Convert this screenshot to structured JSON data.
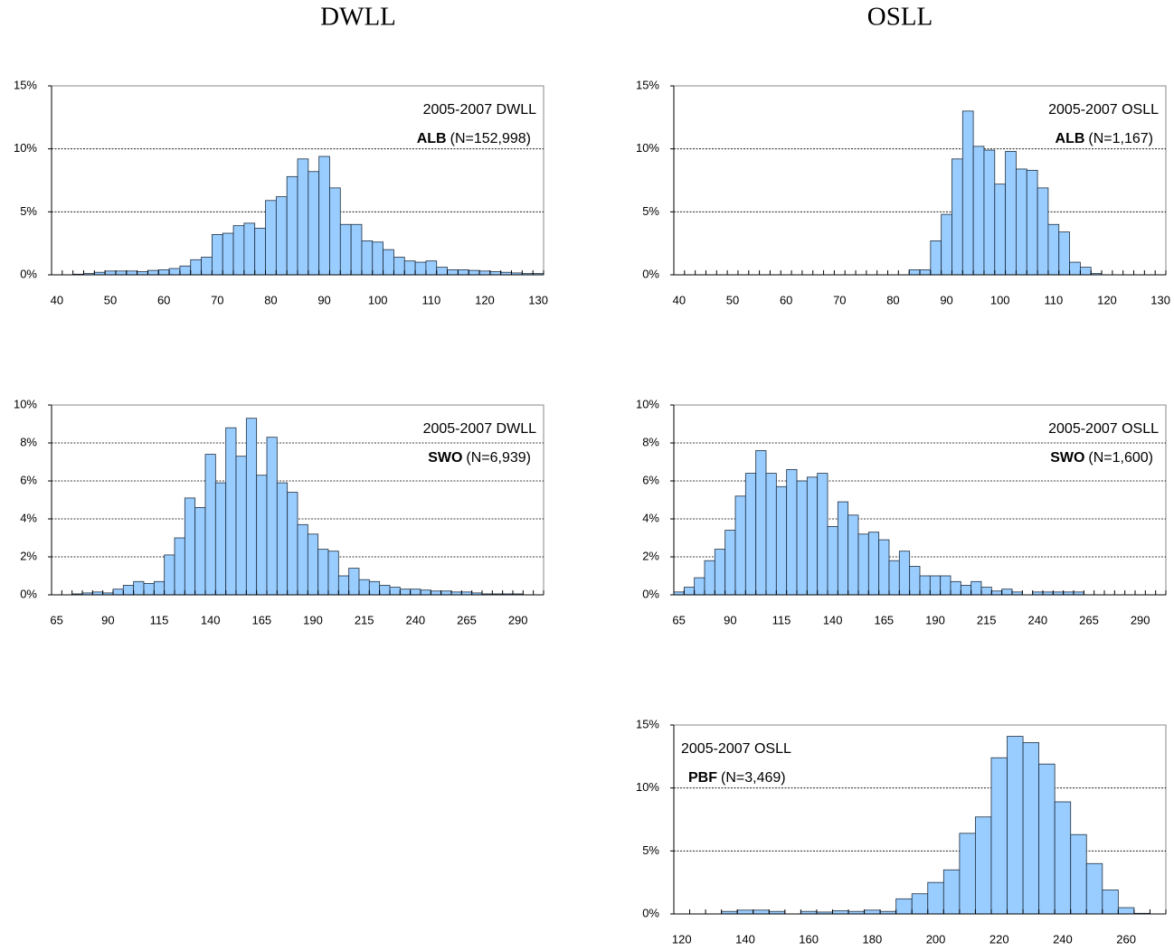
{
  "column_titles": [
    "DWLL",
    "OSLL"
  ],
  "chart_data": [
    {
      "type": "histogram",
      "annotation": "2005-2007 DWLL",
      "species": "ALB",
      "n_label": "(N=152,998)",
      "annotation_corner": "top-right",
      "bins": [
        39,
        41,
        43,
        45,
        47,
        49,
        51,
        53,
        55,
        57,
        59,
        61,
        63,
        65,
        67,
        69,
        71,
        73,
        75,
        77,
        79,
        81,
        83,
        85,
        87,
        89,
        91,
        93,
        95,
        97,
        99,
        101,
        103,
        105,
        107,
        109,
        111,
        113,
        115,
        117,
        119,
        121,
        123,
        125,
        127,
        129,
        131
      ],
      "values": [
        0,
        0,
        0.05,
        0.1,
        0.2,
        0.3,
        0.3,
        0.3,
        0.25,
        0.35,
        0.4,
        0.5,
        0.7,
        1.2,
        1.4,
        3.2,
        3.3,
        3.9,
        4.1,
        3.7,
        5.9,
        6.2,
        7.8,
        9.2,
        8.2,
        9.4,
        6.9,
        4.0,
        4.0,
        2.7,
        2.6,
        2.0,
        1.4,
        1.1,
        1.0,
        1.1,
        0.6,
        0.4,
        0.4,
        0.35,
        0.3,
        0.25,
        0.2,
        0.15,
        0.1,
        0.1
      ],
      "color": "#99ccff",
      "xlim": [
        39,
        131
      ],
      "xticks": [
        40,
        50,
        60,
        70,
        80,
        90,
        100,
        110,
        120,
        130
      ],
      "ylim": [
        0,
        15
      ],
      "yticks": [
        {
          "value": 0,
          "label": "0%"
        },
        {
          "value": 5,
          "label": "5%"
        },
        {
          "value": 10,
          "label": "10%"
        },
        {
          "value": 15,
          "label": "15%"
        }
      ],
      "grid": true
    },
    {
      "type": "histogram",
      "annotation": "2005-2007 OSLL",
      "species": "ALB",
      "n_label": "(N=1,167)",
      "annotation_corner": "top-right",
      "bins": [
        39,
        41,
        43,
        45,
        47,
        49,
        51,
        53,
        55,
        57,
        59,
        61,
        63,
        65,
        67,
        69,
        71,
        73,
        75,
        77,
        79,
        81,
        83,
        85,
        87,
        89,
        91,
        93,
        95,
        97,
        99,
        101,
        103,
        105,
        107,
        109,
        111,
        113,
        115,
        117,
        119,
        121,
        123,
        125,
        127,
        129,
        131
      ],
      "values": [
        0,
        0,
        0,
        0,
        0,
        0,
        0,
        0,
        0,
        0,
        0,
        0,
        0,
        0,
        0,
        0,
        0,
        0,
        0,
        0,
        0,
        0,
        0.4,
        0.4,
        2.7,
        4.8,
        9.2,
        13.0,
        10.2,
        9.9,
        7.2,
        9.8,
        8.4,
        8.3,
        6.9,
        4.0,
        3.4,
        1.0,
        0.6,
        0.1,
        0,
        0,
        0,
        0,
        0,
        0
      ],
      "color": "#99ccff",
      "xlim": [
        39,
        131
      ],
      "xticks": [
        40,
        50,
        60,
        70,
        80,
        90,
        100,
        110,
        120,
        130
      ],
      "ylim": [
        0,
        15
      ],
      "yticks": [
        {
          "value": 0,
          "label": "0%"
        },
        {
          "value": 5,
          "label": "5%"
        },
        {
          "value": 10,
          "label": "10%"
        },
        {
          "value": 15,
          "label": "15%"
        }
      ],
      "grid": true
    },
    {
      "type": "histogram",
      "annotation": "2005-2007 DWLL",
      "species": "SWO",
      "n_label": "(N=6,939)",
      "annotation_corner": "top-right",
      "bins": [
        62.5,
        67.5,
        72.5,
        77.5,
        82.5,
        87.5,
        92.5,
        97.5,
        102.5,
        107.5,
        112.5,
        117.5,
        122.5,
        127.5,
        132.5,
        137.5,
        142.5,
        147.5,
        152.5,
        157.5,
        162.5,
        167.5,
        172.5,
        177.5,
        182.5,
        187.5,
        192.5,
        197.5,
        202.5,
        207.5,
        212.5,
        217.5,
        222.5,
        227.5,
        232.5,
        237.5,
        242.5,
        247.5,
        252.5,
        257.5,
        262.5,
        267.5,
        272.5,
        277.5,
        282.5,
        287.5,
        292.5,
        297.5,
        302.5
      ],
      "values": [
        0,
        0,
        0.05,
        0.1,
        0.15,
        0.1,
        0.3,
        0.5,
        0.7,
        0.6,
        0.7,
        2.1,
        3.0,
        5.1,
        4.6,
        7.4,
        5.9,
        8.8,
        7.3,
        9.3,
        6.3,
        8.3,
        5.9,
        5.4,
        3.7,
        3.2,
        2.4,
        2.3,
        1.0,
        1.4,
        0.8,
        0.7,
        0.5,
        0.4,
        0.3,
        0.3,
        0.25,
        0.2,
        0.2,
        0.15,
        0.15,
        0.1,
        0.05,
        0.05,
        0.05,
        0.05,
        0,
        0
      ],
      "color": "#99ccff",
      "xlim": [
        62.5,
        302.5
      ],
      "xticks": [
        65,
        90,
        115,
        140,
        165,
        190,
        215,
        240,
        265,
        290
      ],
      "ylim": [
        0,
        10
      ],
      "yticks": [
        {
          "value": 0,
          "label": "0%"
        },
        {
          "value": 2,
          "label": "2%"
        },
        {
          "value": 4,
          "label": "4%"
        },
        {
          "value": 6,
          "label": "6%"
        },
        {
          "value": 8,
          "label": "8%"
        },
        {
          "value": 10,
          "label": "10%"
        }
      ],
      "grid": true
    },
    {
      "type": "histogram",
      "annotation": "2005-2007 OSLL",
      "species": "SWO",
      "n_label": "(N=1,600)",
      "annotation_corner": "top-right",
      "bins": [
        62.5,
        67.5,
        72.5,
        77.5,
        82.5,
        87.5,
        92.5,
        97.5,
        102.5,
        107.5,
        112.5,
        117.5,
        122.5,
        127.5,
        132.5,
        137.5,
        142.5,
        147.5,
        152.5,
        157.5,
        162.5,
        167.5,
        172.5,
        177.5,
        182.5,
        187.5,
        192.5,
        197.5,
        202.5,
        207.5,
        212.5,
        217.5,
        222.5,
        227.5,
        232.5,
        237.5,
        242.5,
        247.5,
        252.5,
        257.5,
        262.5,
        267.5,
        272.5,
        277.5,
        282.5,
        287.5,
        292.5,
        297.5,
        302.5
      ],
      "values": [
        0.15,
        0.4,
        0.9,
        1.8,
        2.4,
        3.4,
        5.2,
        6.4,
        7.6,
        6.4,
        5.7,
        6.6,
        6.0,
        6.2,
        6.4,
        3.6,
        4.9,
        4.2,
        3.2,
        3.3,
        2.9,
        1.8,
        2.3,
        1.5,
        1.0,
        1.0,
        1.0,
        0.7,
        0.5,
        0.7,
        0.4,
        0.2,
        0.3,
        0.15,
        0,
        0.15,
        0.15,
        0.15,
        0.15,
        0.15,
        0,
        0,
        0,
        0,
        0,
        0,
        0,
        0
      ],
      "color": "#99ccff",
      "xlim": [
        62.5,
        302.5
      ],
      "xticks": [
        65,
        90,
        115,
        140,
        165,
        190,
        215,
        240,
        265,
        290
      ],
      "ylim": [
        0,
        10
      ],
      "yticks": [
        {
          "value": 0,
          "label": "0%"
        },
        {
          "value": 2,
          "label": "2%"
        },
        {
          "value": 4,
          "label": "4%"
        },
        {
          "value": 6,
          "label": "6%"
        },
        {
          "value": 8,
          "label": "8%"
        },
        {
          "value": 10,
          "label": "10%"
        }
      ],
      "grid": true
    },
    {
      "type": "histogram",
      "annotation": "2005-2007 OSLL",
      "species": "PBF",
      "n_label": "(N=3,469)",
      "annotation_corner": "top-left",
      "bins": [
        117.5,
        122.5,
        127.5,
        132.5,
        137.5,
        142.5,
        147.5,
        152.5,
        157.5,
        162.5,
        167.5,
        172.5,
        177.5,
        182.5,
        187.5,
        192.5,
        197.5,
        202.5,
        207.5,
        212.5,
        217.5,
        222.5,
        227.5,
        232.5,
        237.5,
        242.5,
        247.5,
        252.5,
        257.5,
        262.5,
        267.5,
        272.5
      ],
      "values": [
        0,
        0,
        0,
        0.2,
        0.3,
        0.3,
        0.2,
        0,
        0.2,
        0.15,
        0.25,
        0.2,
        0.3,
        0.2,
        1.2,
        1.6,
        2.5,
        3.5,
        6.4,
        7.7,
        12.4,
        14.1,
        13.6,
        11.9,
        8.9,
        6.3,
        4.0,
        1.9,
        0.5,
        0.05,
        0
      ],
      "color": "#99ccff",
      "xlim": [
        117.5,
        272.5
      ],
      "xticks": [
        120,
        140,
        160,
        180,
        200,
        220,
        240,
        260
      ],
      "ylim": [
        0,
        15
      ],
      "yticks": [
        {
          "value": 0,
          "label": "0%"
        },
        {
          "value": 5,
          "label": "5%"
        },
        {
          "value": 10,
          "label": "10%"
        },
        {
          "value": 15,
          "label": "15%"
        }
      ],
      "grid": true
    }
  ]
}
